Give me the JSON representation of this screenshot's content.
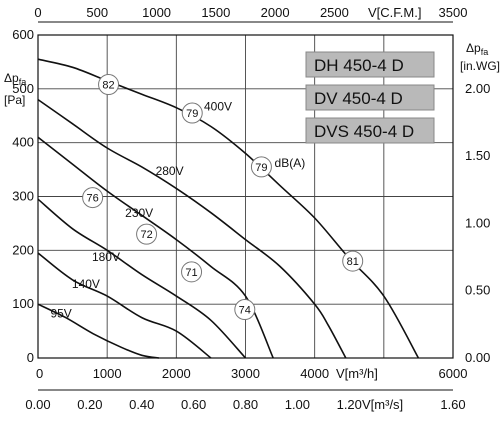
{
  "chart_data": {
    "type": "line",
    "x_axis_primary": {
      "label": "V[m³/h]",
      "range": [
        0,
        6000
      ],
      "ticks": [
        0,
        1000,
        2000,
        3000,
        4000,
        5000,
        6000
      ],
      "tick_labels": [
        "0",
        "1000",
        "2000",
        "3000",
        "4000",
        "",
        "6000"
      ]
    },
    "x_axis_top": {
      "label": "V[C.F.M.]",
      "range": [
        0,
        3500
      ],
      "ticks": [
        0,
        500,
        1000,
        1500,
        2000,
        2500,
        3500
      ],
      "tick_labels": [
        "0",
        "500",
        "1000",
        "1500",
        "2000",
        "2500",
        "3500"
      ]
    },
    "x_axis_bottom2": {
      "label": "V[m³/s]",
      "range": [
        0,
        1.6
      ],
      "ticks": [
        0,
        0.2,
        0.4,
        0.6,
        0.8,
        1.0,
        1.2,
        1.6
      ],
      "tick_labels": [
        "0.00",
        "0.20",
        "0.40",
        "0.60",
        "0.80",
        "1.00",
        "1.20",
        "1.60"
      ]
    },
    "y_axis_left": {
      "label": "Δp",
      "subscript": "fa",
      "unit": "[Pa]",
      "range": [
        0,
        600
      ],
      "ticks": [
        0,
        100,
        200,
        300,
        400,
        500,
        600
      ],
      "tick_labels": [
        "0",
        "100",
        "200",
        "300",
        "400",
        "500",
        "600"
      ]
    },
    "y_axis_right": {
      "label": "Δp",
      "subscript": "fa",
      "unit": "[in.WG]",
      "range": [
        0,
        2.4
      ],
      "ticks": [
        0,
        0.5,
        1.0,
        1.5,
        2.0
      ],
      "tick_labels": [
        "0.00",
        "0.50",
        "1.00",
        "1.50",
        "2.00"
      ]
    },
    "grid": true,
    "models": [
      "DH 450-4 D",
      "DV 450-4 D",
      "DVS 450-4 D"
    ],
    "series": [
      {
        "name": "400V",
        "points": [
          [
            0,
            555
          ],
          [
            500,
            540
          ],
          [
            1000,
            515
          ],
          [
            1500,
            490
          ],
          [
            2000,
            465
          ],
          [
            2500,
            430
          ],
          [
            3000,
            380
          ],
          [
            3500,
            320
          ],
          [
            4000,
            260
          ],
          [
            4500,
            185
          ],
          [
            5000,
            115
          ],
          [
            5500,
            0
          ]
        ]
      },
      {
        "name": "280V",
        "points": [
          [
            0,
            480
          ],
          [
            500,
            435
          ],
          [
            1000,
            390
          ],
          [
            1500,
            355
          ],
          [
            2000,
            315
          ],
          [
            2500,
            270
          ],
          [
            3000,
            220
          ],
          [
            3500,
            170
          ],
          [
            4000,
            100
          ],
          [
            4200,
            60
          ],
          [
            4450,
            0
          ]
        ]
      },
      {
        "name": "230V",
        "points": [
          [
            0,
            410
          ],
          [
            500,
            360
          ],
          [
            1000,
            310
          ],
          [
            1500,
            265
          ],
          [
            2000,
            220
          ],
          [
            2500,
            170
          ],
          [
            3000,
            115
          ],
          [
            3400,
            0
          ]
        ]
      },
      {
        "name": "180V",
        "points": [
          [
            0,
            295
          ],
          [
            500,
            240
          ],
          [
            1000,
            200
          ],
          [
            1500,
            155
          ],
          [
            2000,
            115
          ],
          [
            2500,
            70
          ],
          [
            3000,
            0
          ]
        ]
      },
      {
        "name": "140V",
        "points": [
          [
            0,
            195
          ],
          [
            500,
            145
          ],
          [
            1000,
            115
          ],
          [
            1500,
            75
          ],
          [
            2000,
            50
          ],
          [
            2500,
            0
          ]
        ]
      },
      {
        "name": "95V",
        "points": [
          [
            0,
            100
          ],
          [
            400,
            75
          ],
          [
            800,
            45
          ],
          [
            1200,
            20
          ],
          [
            1500,
            5
          ],
          [
            1750,
            0
          ]
        ]
      }
    ],
    "db_markers": [
      {
        "value": "82",
        "x": 1020,
        "y": 508
      },
      {
        "value": "79",
        "x": 2230,
        "y": 455
      },
      {
        "value": "79",
        "x": 3230,
        "y": 355
      },
      {
        "value": "81",
        "x": 4550,
        "y": 180
      },
      {
        "value": "76",
        "x": 790,
        "y": 298
      },
      {
        "value": "72",
        "x": 1570,
        "y": 230
      },
      {
        "value": "71",
        "x": 2220,
        "y": 160
      },
      {
        "value": "74",
        "x": 2990,
        "y": 90
      }
    ],
    "annotations": [
      {
        "text": "400V",
        "x": 2400,
        "y": 460
      },
      {
        "text": "dB(A)",
        "x": 3420,
        "y": 355
      },
      {
        "text": "280V",
        "x": 1700,
        "y": 340
      },
      {
        "text": "230V",
        "x": 1260,
        "y": 262
      },
      {
        "text": "180V",
        "x": 780,
        "y": 180
      },
      {
        "text": "140V",
        "x": 490,
        "y": 130
      },
      {
        "text": "95V",
        "x": 180,
        "y": 75
      }
    ]
  }
}
